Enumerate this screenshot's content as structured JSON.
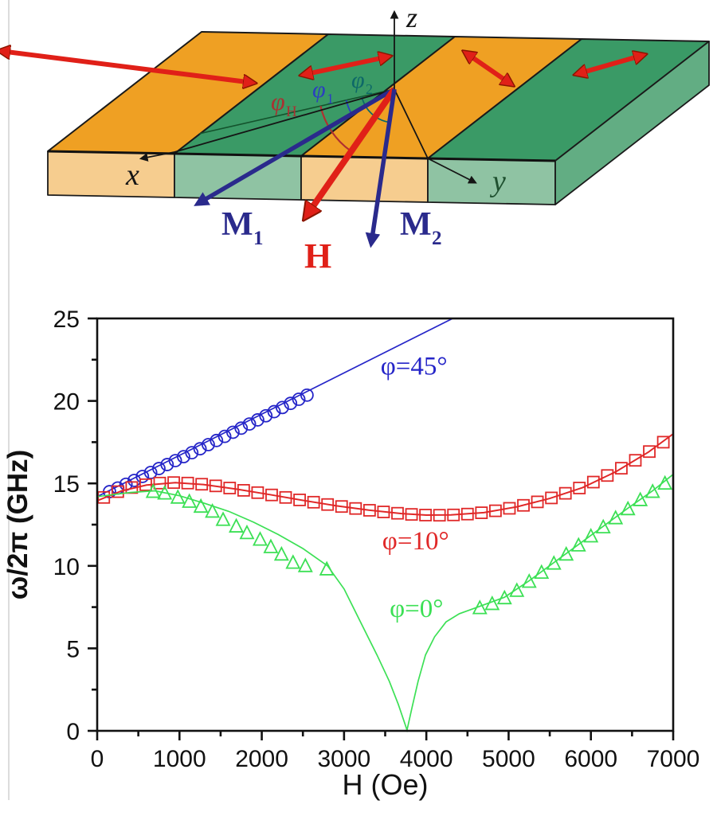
{
  "figure": {
    "diagram": {
      "axis_labels": {
        "x": "x",
        "y": "y",
        "z": "z"
      },
      "vectors": {
        "M1": [
          "M",
          "1"
        ],
        "H": "H",
        "M2": [
          "M",
          "2"
        ]
      },
      "angles": {
        "phiH": [
          "φ",
          "H"
        ],
        "phi1": [
          "φ",
          "1"
        ],
        "phi2": [
          "φ",
          "2"
        ]
      },
      "colors": {
        "stripe_orange": "#efa023",
        "stripe_green": "#3a9a66",
        "front_orange": "#f6cd8f",
        "front_green": "#8fc3a3",
        "side_green": "#62ad83",
        "easy_axis_arrow": "#e02018",
        "magnetization_vector": "#2a2a8c",
        "field_vector": "#e02018",
        "phiH_label": "#a83232",
        "phi1_label": "#2b3fbf",
        "phi2_label": "#0d6868"
      }
    }
  },
  "chart_data": {
    "type": "scatter",
    "title": "",
    "xlabel": "H (Oe)",
    "ylabel": "ω/2π (GHz)",
    "xlim": [
      0,
      7000
    ],
    "ylim": [
      0,
      25
    ],
    "x_ticks": [
      0,
      1000,
      2000,
      3000,
      4000,
      5000,
      6000,
      7000
    ],
    "y_ticks": [
      0,
      5,
      10,
      15,
      20,
      25
    ],
    "x_minor_step": 500,
    "y_minor_step": 2.5,
    "grid": false,
    "legend_position": "inline-annotations",
    "series": [
      {
        "label": "φ=45°",
        "color": "#2525c8",
        "marker": "circle",
        "label_pos": [
          3850,
          21.6
        ],
        "points": [
          [
            150,
            14.5
          ],
          [
            250,
            14.72
          ],
          [
            350,
            14.95
          ],
          [
            450,
            15.18
          ],
          [
            550,
            15.42
          ],
          [
            650,
            15.66
          ],
          [
            750,
            15.9
          ],
          [
            850,
            16.14
          ],
          [
            950,
            16.38
          ],
          [
            1050,
            16.62
          ],
          [
            1150,
            16.86
          ],
          [
            1250,
            17.1
          ],
          [
            1350,
            17.35
          ],
          [
            1450,
            17.6
          ],
          [
            1550,
            17.85
          ],
          [
            1650,
            18.1
          ],
          [
            1750,
            18.35
          ],
          [
            1850,
            18.6
          ],
          [
            1950,
            18.85
          ],
          [
            2050,
            19.1
          ],
          [
            2150,
            19.35
          ],
          [
            2250,
            19.6
          ],
          [
            2350,
            19.85
          ],
          [
            2450,
            20.1
          ],
          [
            2550,
            20.35
          ]
        ],
        "line": [
          [
            0,
            14.2
          ],
          [
            4320,
            25
          ]
        ]
      },
      {
        "label": "φ=10°",
        "color": "#e02828",
        "marker": "square",
        "label_pos": [
          3870,
          11.0
        ],
        "points": [
          [
            80,
            14.15
          ],
          [
            250,
            14.5
          ],
          [
            420,
            14.75
          ],
          [
            590,
            14.92
          ],
          [
            760,
            15.02
          ],
          [
            930,
            15.05
          ],
          [
            1100,
            15.02
          ],
          [
            1270,
            14.95
          ],
          [
            1440,
            14.85
          ],
          [
            1610,
            14.72
          ],
          [
            1780,
            14.58
          ],
          [
            1950,
            14.44
          ],
          [
            2120,
            14.3
          ],
          [
            2290,
            14.15
          ],
          [
            2460,
            14.0
          ],
          [
            2630,
            13.86
          ],
          [
            2800,
            13.72
          ],
          [
            2970,
            13.6
          ],
          [
            3140,
            13.48
          ],
          [
            3310,
            13.37
          ],
          [
            3480,
            13.27
          ],
          [
            3650,
            13.19
          ],
          [
            3820,
            13.12
          ],
          [
            3990,
            13.08
          ],
          [
            4160,
            13.07
          ],
          [
            4330,
            13.09
          ],
          [
            4500,
            13.14
          ],
          [
            4670,
            13.22
          ],
          [
            4840,
            13.34
          ],
          [
            5010,
            13.49
          ],
          [
            5180,
            13.67
          ],
          [
            5350,
            13.88
          ],
          [
            5520,
            14.12
          ],
          [
            5690,
            14.4
          ],
          [
            5860,
            14.72
          ],
          [
            6030,
            15.08
          ],
          [
            6200,
            15.48
          ],
          [
            6370,
            15.92
          ],
          [
            6540,
            16.4
          ],
          [
            6710,
            16.93
          ],
          [
            6880,
            17.5
          ]
        ],
        "line": [
          [
            0,
            13.95
          ],
          [
            300,
            14.55
          ],
          [
            600,
            14.9
          ],
          [
            950,
            15.05
          ],
          [
            1300,
            14.93
          ],
          [
            1700,
            14.65
          ],
          [
            2100,
            14.32
          ],
          [
            2500,
            13.97
          ],
          [
            2900,
            13.65
          ],
          [
            3300,
            13.38
          ],
          [
            3700,
            13.17
          ],
          [
            4000,
            13.08
          ],
          [
            4300,
            13.09
          ],
          [
            4700,
            13.23
          ],
          [
            5100,
            13.58
          ],
          [
            5500,
            14.09
          ],
          [
            5900,
            14.75
          ],
          [
            6300,
            15.7
          ],
          [
            6700,
            16.9
          ],
          [
            7000,
            18.0
          ]
        ]
      },
      {
        "label": "φ=0°",
        "color": "#3ce055",
        "marker": "triangle",
        "label_pos": [
          3880,
          6.9
        ],
        "points": [
          [
            680,
            14.5
          ],
          [
            820,
            14.4
          ],
          [
            980,
            14.15
          ],
          [
            1120,
            13.9
          ],
          [
            1260,
            13.6
          ],
          [
            1400,
            13.3
          ],
          [
            1530,
            12.8
          ],
          [
            1690,
            12.4
          ],
          [
            1820,
            12.0
          ],
          [
            1980,
            11.6
          ],
          [
            2110,
            11.15
          ],
          [
            2240,
            10.7
          ],
          [
            2380,
            10.2
          ],
          [
            2530,
            10.0
          ],
          [
            2790,
            9.8
          ],
          [
            4650,
            7.45
          ],
          [
            4800,
            7.7
          ],
          [
            4950,
            8.05
          ],
          [
            5100,
            8.5
          ],
          [
            5250,
            9.05
          ],
          [
            5400,
            9.6
          ],
          [
            5550,
            10.15
          ],
          [
            5700,
            10.7
          ],
          [
            5850,
            11.25
          ],
          [
            6000,
            11.8
          ],
          [
            6150,
            12.35
          ],
          [
            6300,
            12.9
          ],
          [
            6450,
            13.45
          ],
          [
            6600,
            14.0
          ],
          [
            6750,
            14.5
          ],
          [
            6900,
            15.0
          ]
        ],
        "line": [
          [
            0,
            14.2
          ],
          [
            400,
            14.45
          ],
          [
            700,
            14.55
          ],
          [
            1000,
            14.25
          ],
          [
            1300,
            13.8
          ],
          [
            1600,
            13.3
          ],
          [
            1900,
            12.65
          ],
          [
            2200,
            11.9
          ],
          [
            2500,
            11.05
          ],
          [
            2800,
            10.0
          ],
          [
            3000,
            8.6
          ],
          [
            3200,
            6.6
          ],
          [
            3400,
            4.6
          ],
          [
            3550,
            3.0
          ],
          [
            3660,
            1.6
          ],
          [
            3765,
            0.05
          ],
          [
            3830,
            1.5
          ],
          [
            3900,
            3.0
          ],
          [
            3990,
            4.6
          ],
          [
            4100,
            5.7
          ],
          [
            4240,
            6.6
          ],
          [
            4400,
            7.1
          ],
          [
            4650,
            7.55
          ],
          [
            4950,
            8.1
          ],
          [
            5250,
            9.1
          ],
          [
            5550,
            10.2
          ],
          [
            5850,
            11.3
          ],
          [
            6150,
            12.4
          ],
          [
            6450,
            13.5
          ],
          [
            6750,
            14.55
          ],
          [
            7000,
            15.55
          ]
        ]
      }
    ]
  }
}
